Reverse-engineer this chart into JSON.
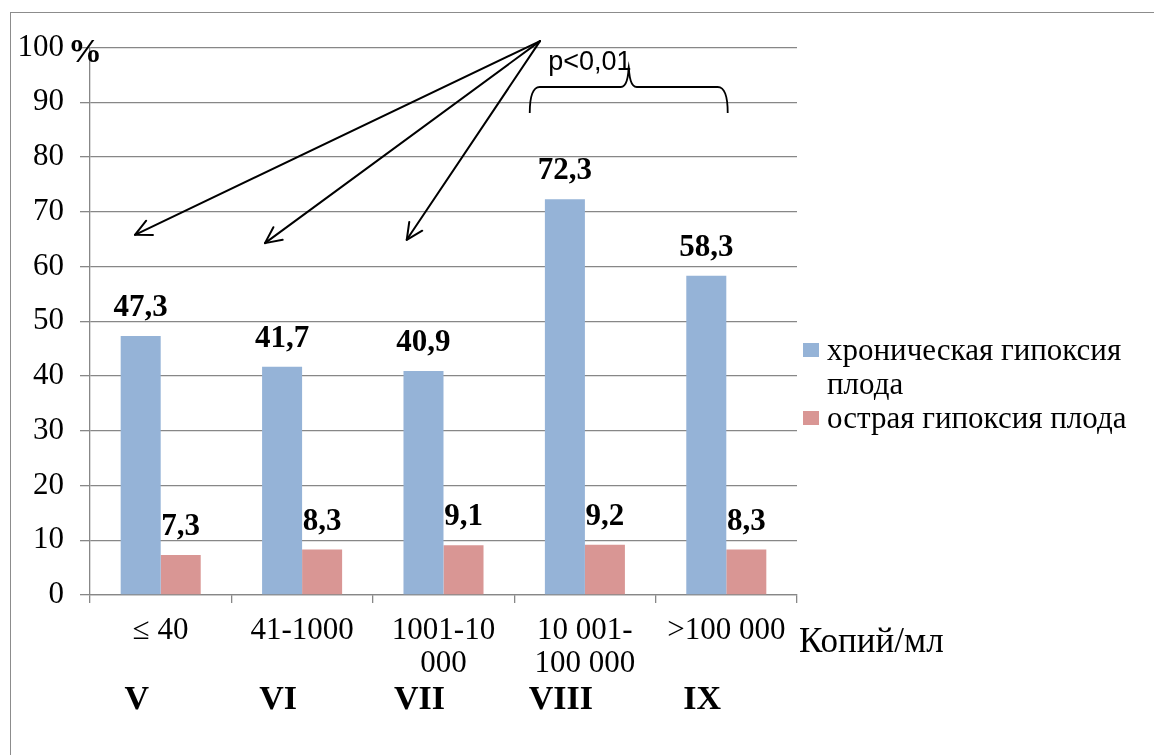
{
  "chart_data": {
    "type": "bar",
    "categories": [
      "≤ 40",
      "41-1000",
      "1001-10 000",
      "10 001-100 000",
      ">100 000"
    ],
    "xlabel": "Копий/мл",
    "ylabel": "%",
    "series": [
      {
        "name": "хроническая гипоксия плода",
        "color": "#95b3d7",
        "values": [
          47.3,
          41.7,
          40.9,
          72.3,
          58.3
        ],
        "value_labels": [
          "47,3",
          "41,7",
          "40,9",
          "72,3",
          "58,3"
        ]
      },
      {
        "name": "острая гипоксия плода",
        "color": "#d99694",
        "values": [
          7.3,
          8.3,
          9.1,
          9.2,
          8.3
        ],
        "value_labels": [
          "7,3",
          "8,3",
          "9,1",
          "9,2",
          "8,3"
        ]
      }
    ],
    "ylim": [
      0,
      100
    ],
    "yticks": [
      0,
      10,
      20,
      30,
      40,
      50,
      60,
      70,
      80,
      90,
      100
    ],
    "grid": "y",
    "legend": "right",
    "annotations": [
      "V",
      "VI",
      "VII",
      "VIII",
      "IX",
      "p<0,01"
    ]
  }
}
